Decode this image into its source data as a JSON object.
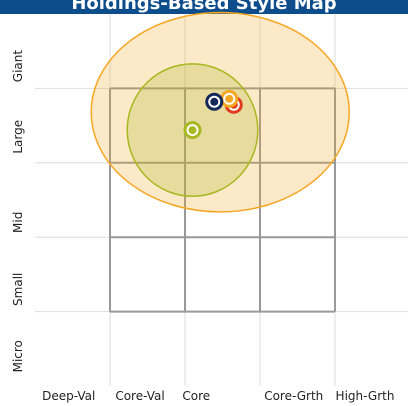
{
  "chart_data": {
    "type": "scatter",
    "title": "Holdings-Based Style Map",
    "xlim": [
      -250,
      250
    ],
    "ylim": [
      -250,
      250
    ],
    "xticks": [
      -150,
      -50,
      50,
      150
    ],
    "yticks": [
      -150,
      -50,
      50,
      150
    ],
    "xcategories": [
      {
        "value": -205,
        "label": "Deep-Val"
      },
      {
        "value": -110,
        "label": "Core-Val"
      },
      {
        "value": -35,
        "label": "Core"
      },
      {
        "value": 95,
        "label": "Core-Grth"
      },
      {
        "value": 190,
        "label": "High-Grth"
      }
    ],
    "ycategories": [
      {
        "value": -210,
        "label": "Micro"
      },
      {
        "value": -120,
        "label": "Small"
      },
      {
        "value": -30,
        "label": "Mid"
      },
      {
        "value": 85,
        "label": "Large"
      },
      {
        "value": 180,
        "label": "Giant"
      }
    ],
    "zones": [
      {
        "x": -3,
        "y": 118,
        "rx": 172,
        "ry": 134,
        "color": "#f5a623"
      },
      {
        "x": -40,
        "y": 94,
        "rx": 87,
        "ry": 89,
        "color": "#a8b820"
      }
    ],
    "points": [
      {
        "x": -40,
        "y": 94,
        "color": "#a8b820"
      },
      {
        "x": 15,
        "y": 128,
        "color": "#e03a1e"
      },
      {
        "x": 9,
        "y": 136,
        "color": "#f5a623"
      },
      {
        "x": -11,
        "y": 132,
        "color": "#14285a"
      }
    ],
    "grid": true
  }
}
